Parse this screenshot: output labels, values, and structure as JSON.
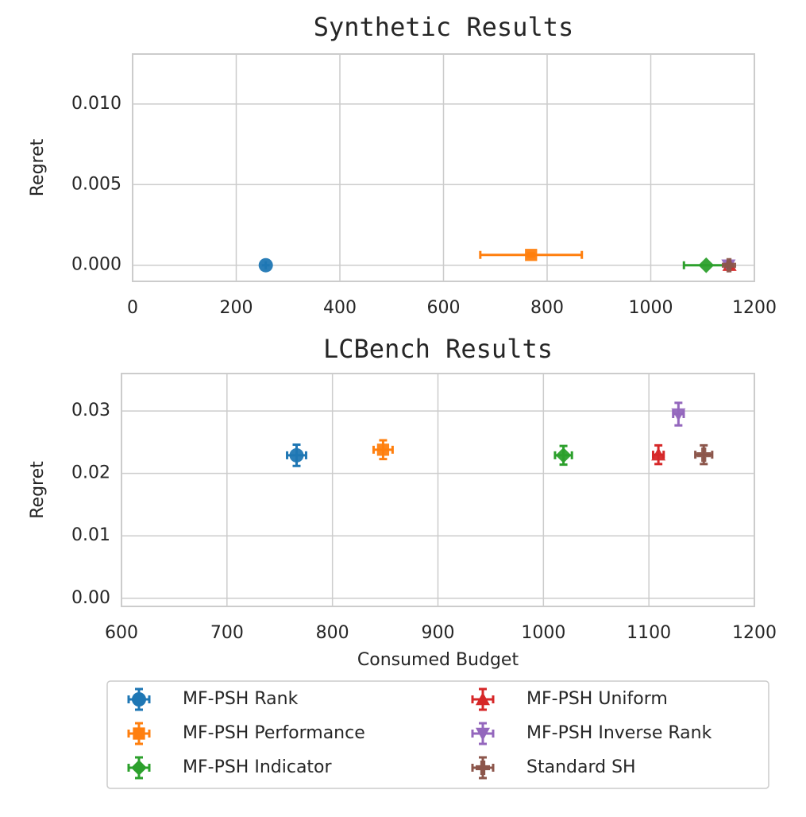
{
  "chart_data": [
    {
      "type": "scatter",
      "title": "Synthetic Results",
      "ylabel": "Regret",
      "xlim": [
        0,
        1200
      ],
      "ylim": [
        -0.001,
        0.0131
      ],
      "xticks": [
        0,
        200,
        400,
        600,
        800,
        1000,
        1200
      ],
      "yticks": [
        {
          "value": 0,
          "label": "0.000"
        },
        {
          "value": 0.005,
          "label": "0.005"
        },
        {
          "value": 0.01,
          "label": "0.010"
        }
      ],
      "grid": true,
      "series": [
        {
          "color": "#1f77b4",
          "marker": "circle",
          "x": [
            257
          ],
          "y": [
            0
          ],
          "xerr": [
            0
          ],
          "yerr": [
            0
          ]
        },
        {
          "color": "#ff7f0e",
          "marker": "square",
          "x": [
            769
          ],
          "y": [
            0.00064
          ],
          "xerr": [
            98
          ],
          "yerr": [
            0.0001
          ]
        },
        {
          "color": "#2ca02c",
          "marker": "diamond",
          "x": [
            1107
          ],
          "y": [
            0
          ],
          "xerr": [
            43
          ],
          "yerr": [
            0
          ]
        },
        {
          "color": "#d62728",
          "marker": "triangle-up",
          "x": [
            1152
          ],
          "y": [
            0
          ],
          "xerr": [
            5
          ],
          "yerr": [
            0
          ]
        },
        {
          "color": "#9467bd",
          "marker": "triangle-down",
          "x": [
            1150
          ],
          "y": [
            0
          ],
          "xerr": [
            3
          ],
          "yerr": [
            0
          ]
        },
        {
          "color": "#8c564b",
          "marker": "plus",
          "x": [
            1151
          ],
          "y": [
            0
          ],
          "xerr": [
            3
          ],
          "yerr": [
            0
          ]
        }
      ]
    },
    {
      "type": "scatter",
      "title": "LCBench Results",
      "xlabel": "Consumed Budget",
      "ylabel": "Regret",
      "xlim": [
        600,
        1200
      ],
      "ylim": [
        -0.0013,
        0.036
      ],
      "xticks": [
        600,
        700,
        800,
        900,
        1000,
        1100,
        1200
      ],
      "yticks": [
        {
          "value": 0,
          "label": "0.00"
        },
        {
          "value": 0.01,
          "label": "0.01"
        },
        {
          "value": 0.02,
          "label": "0.02"
        },
        {
          "value": 0.03,
          "label": "0.03"
        }
      ],
      "grid": true,
      "series": [
        {
          "name": "MF-PSH Rank",
          "color": "#1f77b4",
          "marker": "circle",
          "x": [
            766
          ],
          "y": [
            0.0229
          ],
          "xerr": [
            9
          ],
          "yerr": [
            0.0017
          ]
        },
        {
          "name": "MF-PSH Performance",
          "color": "#ff7f0e",
          "marker": "square",
          "x": [
            848
          ],
          "y": [
            0.0238
          ],
          "xerr": [
            9
          ],
          "yerr": [
            0.0015
          ]
        },
        {
          "name": "MF-PSH Indicator",
          "color": "#2ca02c",
          "marker": "diamond",
          "x": [
            1019
          ],
          "y": [
            0.0229
          ],
          "xerr": [
            8
          ],
          "yerr": [
            0.0015
          ]
        },
        {
          "name": "MF-PSH Uniform",
          "color": "#d62728",
          "marker": "triangle-up",
          "x": [
            1109
          ],
          "y": [
            0.023
          ],
          "xerr": [
            5
          ],
          "yerr": [
            0.0015
          ]
        },
        {
          "name": "MF-PSH Inverse Rank",
          "color": "#9467bd",
          "marker": "triangle-down",
          "x": [
            1128
          ],
          "y": [
            0.0295
          ],
          "xerr": [
            5
          ],
          "yerr": [
            0.0018
          ]
        },
        {
          "name": "Standard SH",
          "color": "#8c564b",
          "marker": "plus",
          "x": [
            1152
          ],
          "y": [
            0.023
          ],
          "xerr": [
            8
          ],
          "yerr": [
            0.0015
          ]
        }
      ]
    }
  ]
}
